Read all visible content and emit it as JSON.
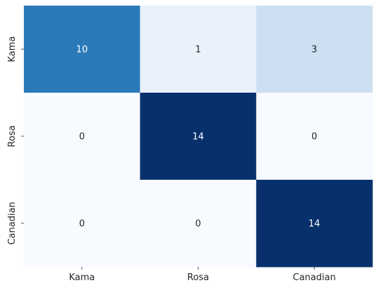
{
  "chart_data": {
    "type": "heatmap",
    "title": "",
    "xlabel": "",
    "ylabel": "",
    "row_labels": [
      "Kama",
      "Rosa",
      "Canadian"
    ],
    "col_labels": [
      "Kama",
      "Rosa",
      "Canadian"
    ],
    "values": [
      [
        10,
        1,
        3
      ],
      [
        0,
        14,
        0
      ],
      [
        0,
        0,
        14
      ]
    ],
    "value_range": [
      0,
      14
    ],
    "colormap": "Blues",
    "colorbar": false,
    "annotated": true
  }
}
